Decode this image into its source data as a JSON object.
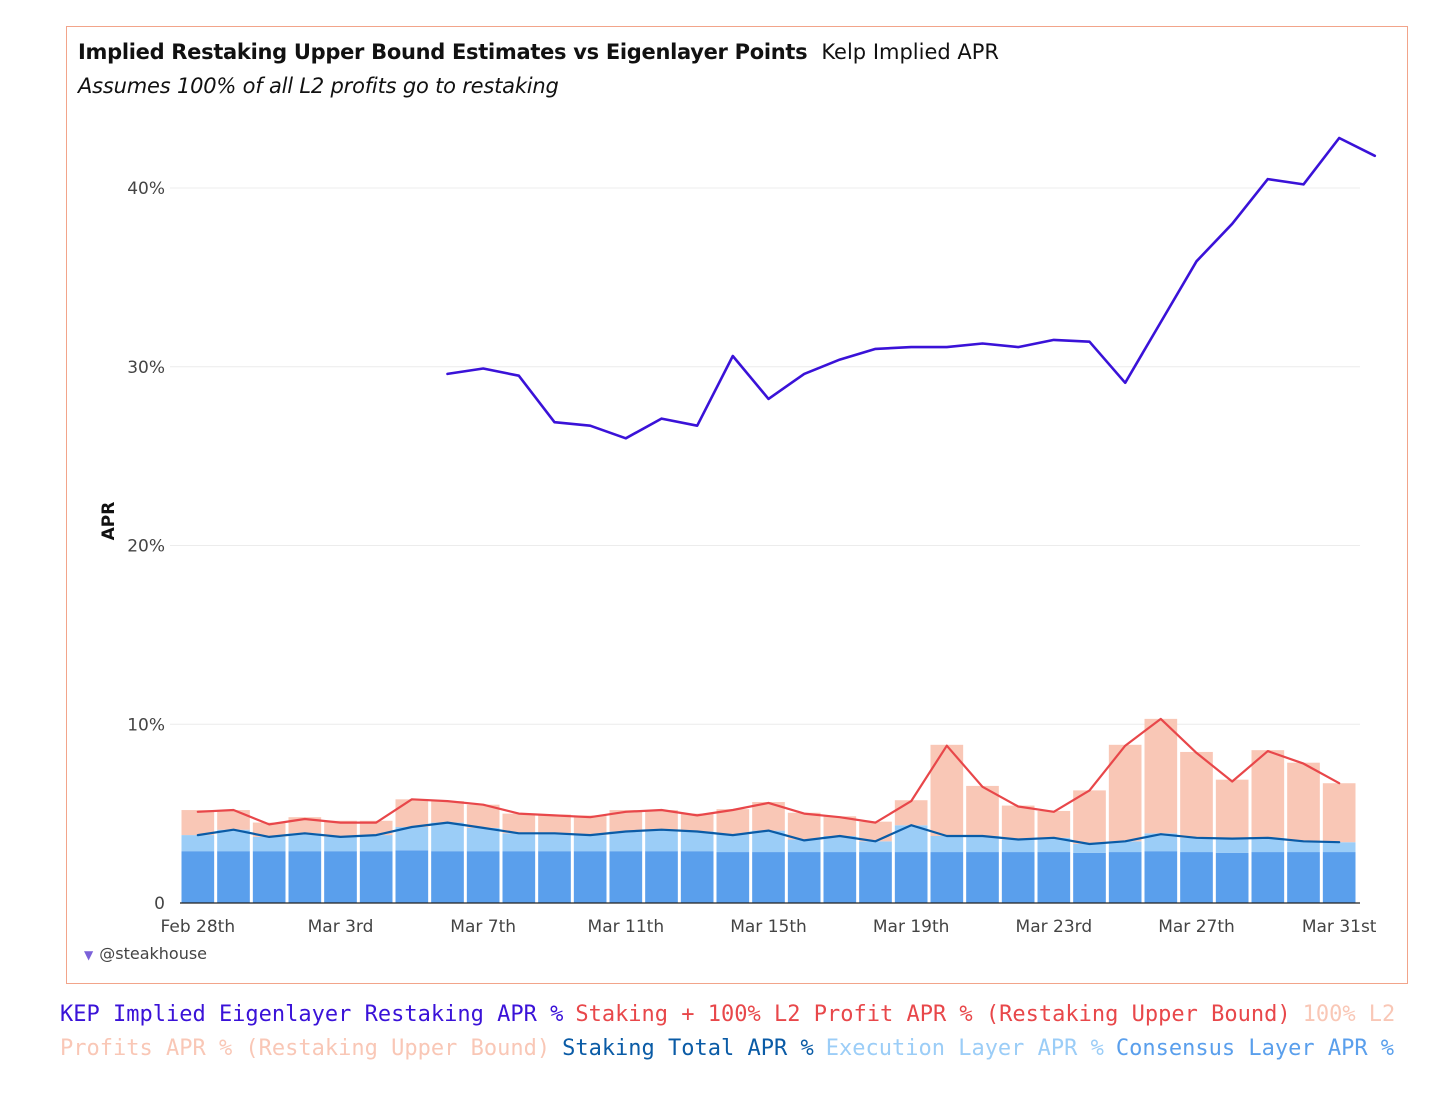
{
  "header": {
    "title": "Implied Restaking Upper Bound Estimates vs Eigenlayer Points",
    "tab": "Kelp Implied APR",
    "subtitle": "Assumes 100% of all L2 profits go to restaking"
  },
  "watermark": "@steakhouse",
  "colors": {
    "kep": "#3a12d8",
    "upper_bound": "#e8474a",
    "l2_profits": "#f9c7b6",
    "staking_total": "#0a5ba6",
    "execution": "#9bcdf7",
    "consensus": "#5a9fec",
    "frame": "#f2a48a"
  },
  "chart_data": {
    "type": "bar",
    "ylabel": "APR",
    "ylim": [
      0,
      43
    ],
    "yticks": [
      0,
      10,
      20,
      30,
      40
    ],
    "ytick_labels": [
      "0",
      "10%",
      "20%",
      "30%",
      "40%"
    ],
    "x": [
      "Feb 28th",
      "Feb 29th",
      "Mar 1st",
      "Mar 2nd",
      "Mar 3rd",
      "Mar 4th",
      "Mar 5th",
      "Mar 6th",
      "Mar 7th",
      "Mar 8th",
      "Mar 9th",
      "Mar 10th",
      "Mar 11th",
      "Mar 12th",
      "Mar 13th",
      "Mar 14th",
      "Mar 15th",
      "Mar 16th",
      "Mar 17th",
      "Mar 18th",
      "Mar 19th",
      "Mar 20th",
      "Mar 21st",
      "Mar 22nd",
      "Mar 23rd",
      "Mar 24th",
      "Mar 25th",
      "Mar 26th",
      "Mar 27th",
      "Mar 28th",
      "Mar 29th",
      "Mar 30th",
      "Mar 31st"
    ],
    "xtick_labels": [
      "Feb 28th",
      "Mar 3rd",
      "Mar 7th",
      "Mar 11th",
      "Mar 15th",
      "Mar 19th",
      "Mar 23rd",
      "Mar 27th",
      "Mar 31st"
    ],
    "stacked_bars": [
      {
        "name": "Consensus Layer APR %",
        "values": [
          2.9,
          2.9,
          2.9,
          2.9,
          2.9,
          2.9,
          2.95,
          2.9,
          2.9,
          2.9,
          2.9,
          2.9,
          2.9,
          2.9,
          2.9,
          2.85,
          2.85,
          2.85,
          2.85,
          2.85,
          2.85,
          2.85,
          2.85,
          2.85,
          2.85,
          2.8,
          2.85,
          2.9,
          2.85,
          2.8,
          2.85,
          2.85,
          2.85
        ]
      },
      {
        "name": "Execution Layer APR %",
        "values": [
          0.9,
          1.2,
          0.8,
          1.0,
          0.8,
          0.9,
          1.3,
          1.6,
          1.3,
          1.0,
          1.0,
          0.9,
          1.1,
          1.2,
          1.1,
          1.0,
          1.2,
          0.7,
          0.9,
          0.6,
          1.5,
          0.9,
          0.9,
          0.7,
          0.8,
          0.5,
          0.6,
          1.0,
          0.8,
          0.8,
          0.8,
          0.6,
          0.55
        ]
      },
      {
        "name": "100% L2 Profits APR % (Restaking Upper Bound)",
        "values": [
          1.4,
          1.1,
          0.8,
          0.9,
          0.9,
          0.8,
          1.55,
          1.2,
          1.3,
          1.1,
          1.05,
          1.1,
          1.2,
          1.1,
          1.0,
          1.4,
          1.6,
          1.5,
          1.1,
          1.1,
          1.4,
          5.1,
          2.8,
          1.9,
          1.5,
          3.0,
          5.4,
          6.4,
          4.8,
          3.3,
          4.9,
          4.4,
          3.3
        ]
      }
    ],
    "lines": [
      {
        "name": "KEP Implied Eigenlayer Restaking APR %",
        "start_index": 7,
        "values": [
          29.6,
          29.9,
          29.5,
          26.9,
          26.7,
          26.0,
          27.1,
          26.7,
          30.6,
          28.2,
          29.6,
          30.4,
          31.0,
          31.1,
          31.1,
          31.3,
          31.1,
          31.5,
          31.4,
          29.1,
          32.5,
          35.9,
          38.0,
          40.5,
          40.2,
          42.8,
          41.8
        ]
      },
      {
        "name": "Staking + 100% L2 Profit APR % (Restaking Upper Bound)",
        "values": [
          5.1,
          5.2,
          4.4,
          4.7,
          4.5,
          4.5,
          5.8,
          5.7,
          5.5,
          5.0,
          4.9,
          4.8,
          5.1,
          5.2,
          4.9,
          5.2,
          5.6,
          5.0,
          4.8,
          4.5,
          5.7,
          8.8,
          6.5,
          5.4,
          5.1,
          6.3,
          8.8,
          10.3,
          8.4,
          6.8,
          8.5,
          7.8,
          6.7
        ]
      },
      {
        "name": "Staking Total APR %",
        "values": [
          3.8,
          4.1,
          3.7,
          3.9,
          3.7,
          3.8,
          4.25,
          4.5,
          4.2,
          3.9,
          3.9,
          3.8,
          4.0,
          4.1,
          4.0,
          3.8,
          4.05,
          3.5,
          3.75,
          3.45,
          4.35,
          3.75,
          3.75,
          3.55,
          3.65,
          3.3,
          3.45,
          3.85,
          3.65,
          3.6,
          3.65,
          3.45,
          3.4
        ]
      }
    ],
    "grid": true,
    "legend_position": "bottom"
  },
  "legend": [
    {
      "label": "KEP Implied Eigenlayer Restaking APR %",
      "color": "#3a12d8"
    },
    {
      "label": "Staking + 100% L2 Profit APR % (Restaking Upper Bound)",
      "color": "#e8474a"
    },
    {
      "label": "100% L2 Profits APR % (Restaking Upper Bound)",
      "color": "#f9c7b6"
    },
    {
      "label": "Staking Total APR %",
      "color": "#0a5ba6"
    },
    {
      "label": "Execution Layer APR %",
      "color": "#9bcdf7"
    },
    {
      "label": "Consensus Layer APR %",
      "color": "#5a9fec"
    }
  ]
}
